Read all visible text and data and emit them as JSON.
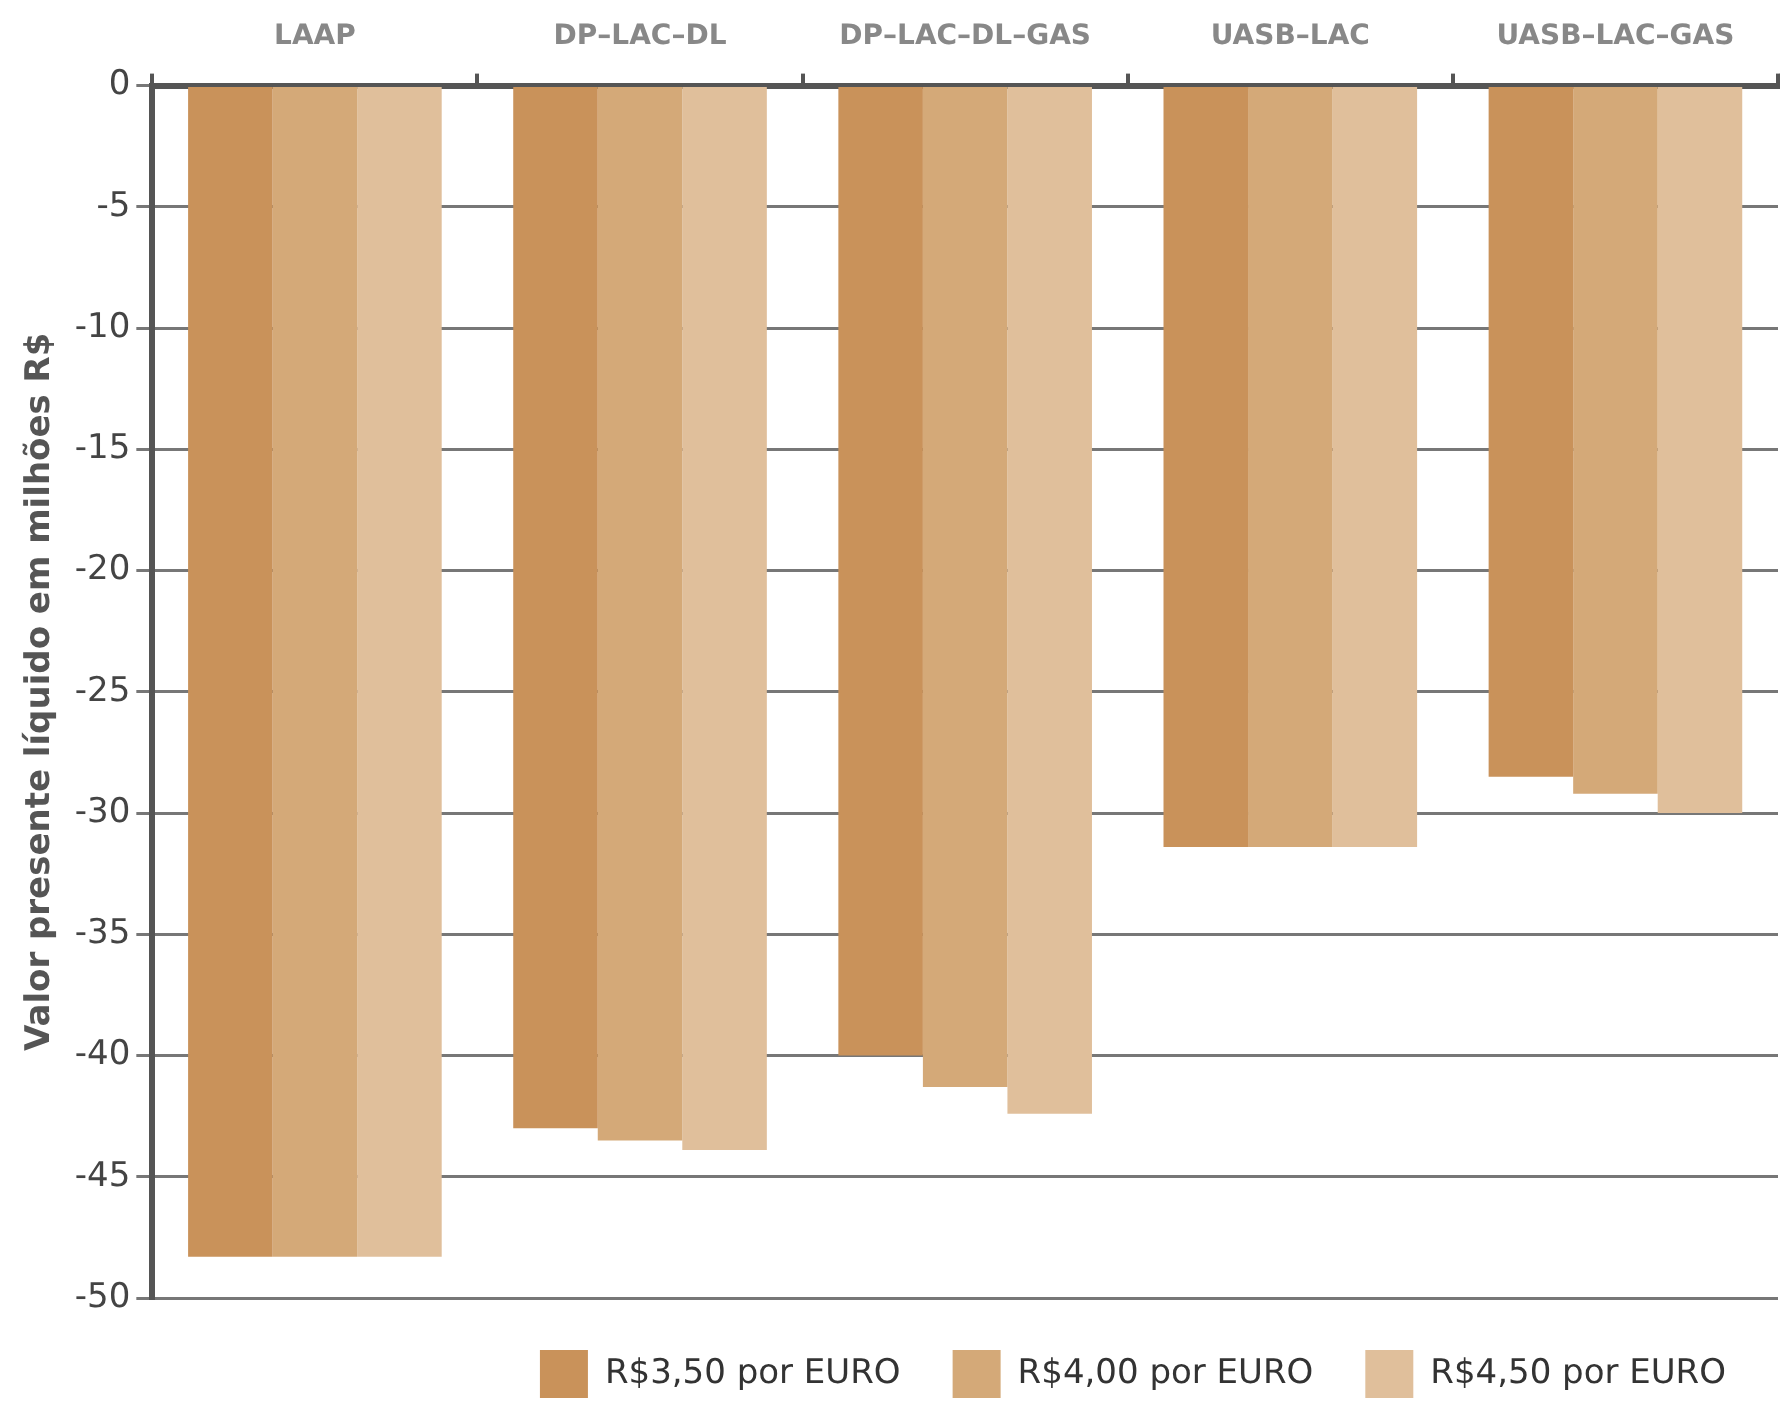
{
  "chart_data": {
    "type": "bar",
    "ylabel": "Valor presente líquido em milhões R$",
    "categories": [
      "LAAP",
      "DP–LAC–DL",
      "DP–LAC–DL–GAS",
      "UASB–LAC",
      "UASB–LAC–GAS"
    ],
    "series": [
      {
        "name": "R$3,50 por EURO",
        "color": "#c9925a",
        "values": [
          -48.3,
          -43.0,
          -40.0,
          -31.4,
          -28.5
        ]
      },
      {
        "name": "R$4,00 por EURO",
        "color": "#d4a978",
        "values": [
          -48.3,
          -43.5,
          -41.3,
          -31.4,
          -29.2
        ]
      },
      {
        "name": "R$4,50 por EURO",
        "color": "#e0bf9b",
        "values": [
          -48.3,
          -43.9,
          -42.4,
          -31.4,
          -30.0
        ]
      }
    ],
    "ylim": [
      -50,
      0
    ],
    "yticks": [
      0,
      -5,
      -10,
      -15,
      -20,
      -25,
      -30,
      -35,
      -40,
      -45,
      -50
    ],
    "grid": "y",
    "legend": "bottom right"
  }
}
